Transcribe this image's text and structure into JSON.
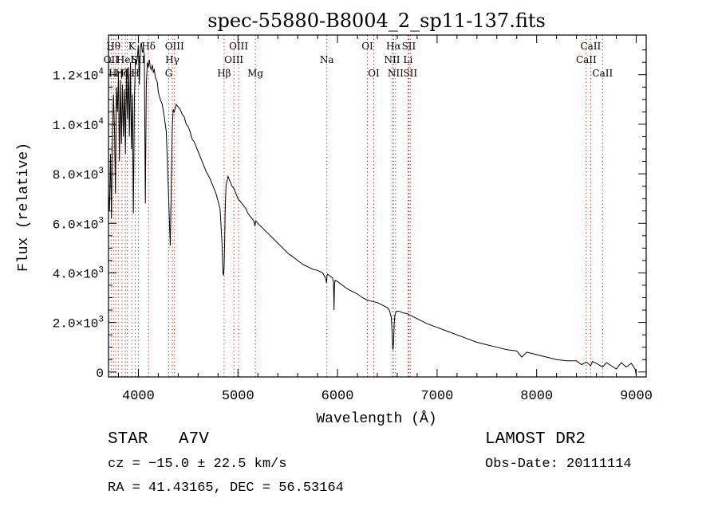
{
  "chart_data": {
    "type": "line",
    "title": "spec-55880-B8004_2_sp11-137.fits",
    "xlabel": "Wavelength (Å)",
    "ylabel": "Flux (relative)",
    "xlim": [
      3700,
      9100
    ],
    "ylim": [
      -200,
      13600
    ],
    "grid": false,
    "x_ticks": [
      4000,
      5000,
      6000,
      7000,
      8000,
      9000
    ],
    "x_tick_labels": [
      "4000",
      "5000",
      "6000",
      "7000",
      "8000",
      "9000"
    ],
    "y_ticks": [
      0,
      2000,
      4000,
      6000,
      8000,
      10000,
      12000
    ],
    "y_tick_labels": [
      {
        "m": "",
        "e": "",
        "plain": "0"
      },
      {
        "m": "2.0",
        "e": "3"
      },
      {
        "m": "4.0",
        "e": "3"
      },
      {
        "m": "6.0",
        "e": "3"
      },
      {
        "m": "8.0",
        "e": "3"
      },
      {
        "m": "1.0",
        "e": "4"
      },
      {
        "m": "1.2",
        "e": "4"
      }
    ],
    "series": [
      {
        "x": [
          3700,
          3710,
          3720,
          3730,
          3740,
          3750,
          3760,
          3770,
          3780,
          3790,
          3800,
          3810,
          3820,
          3830,
          3840,
          3850,
          3860,
          3870,
          3880,
          3890,
          3900,
          3910,
          3920,
          3930,
          3940,
          3950,
          3960,
          3970,
          3980,
          3990,
          4000,
          4010,
          4020,
          4030,
          4040,
          4050,
          4060,
          4070,
          4080,
          4090,
          4100,
          4110,
          4120,
          4130,
          4140,
          4150,
          4160,
          4170,
          4180,
          4190,
          4200,
          4220,
          4240,
          4260,
          4280,
          4300,
          4320,
          4330,
          4340,
          4350,
          4360,
          4380,
          4400,
          4420,
          4440,
          4460,
          4480,
          4500,
          4520,
          4540,
          4560,
          4580,
          4600,
          4620,
          4640,
          4660,
          4680,
          4700,
          4720,
          4740,
          4760,
          4780,
          4800,
          4820,
          4840,
          4850,
          4855,
          4861,
          4867,
          4872,
          4880,
          4900,
          4920,
          4940,
          4960,
          4980,
          5000,
          5020,
          5040,
          5060,
          5080,
          5100,
          5120,
          5140,
          5160,
          5170,
          5175,
          5180,
          5200,
          5250,
          5300,
          5350,
          5400,
          5450,
          5500,
          5550,
          5600,
          5650,
          5700,
          5750,
          5800,
          5850,
          5880,
          5890,
          5895,
          5900,
          5950,
          5960,
          5965,
          5970,
          5975,
          6000,
          6050,
          6100,
          6150,
          6200,
          6250,
          6300,
          6350,
          6400,
          6450,
          6500,
          6520,
          6540,
          6550,
          6556,
          6563,
          6570,
          6576,
          6590,
          6620,
          6650,
          6700,
          6750,
          6800,
          6900,
          7000,
          7100,
          7200,
          7300,
          7400,
          7500,
          7600,
          7700,
          7800,
          7850,
          7900,
          8000,
          8100,
          8200,
          8300,
          8400,
          8450,
          8500,
          8542,
          8560,
          8600,
          8662,
          8700,
          8750,
          8800,
          8850,
          8900,
          8950,
          8990,
          9000
        ],
        "values": [
          7200,
          6500,
          8800,
          6200,
          9600,
          11200,
          9800,
          7200,
          11500,
          10500,
          12000,
          8500,
          11800,
          9200,
          11600,
          9500,
          11400,
          8800,
          12200,
          10200,
          12300,
          9500,
          12500,
          9000,
          11200,
          6400,
          11000,
          12600,
          12400,
          12700,
          13200,
          11600,
          13100,
          13300,
          12900,
          13000,
          12800,
          6800,
          11600,
          12500,
          12300,
          12600,
          12300,
          12200,
          12400,
          12100,
          12200,
          11900,
          11800,
          11700,
          11300,
          11000,
          10800,
          10300,
          9700,
          7500,
          5100,
          7300,
          9800,
          10600,
          10500,
          10800,
          10700,
          10600,
          10400,
          10300,
          10000,
          9900,
          9700,
          9400,
          9300,
          9100,
          8900,
          8700,
          8500,
          8300,
          8100,
          7950,
          7800,
          7600,
          7400,
          7200,
          6900,
          6600,
          5200,
          4000,
          3900,
          4200,
          5400,
          6600,
          7500,
          7900,
          7700,
          7500,
          7400,
          7200,
          7000,
          6900,
          6800,
          6700,
          6600,
          6400,
          6300,
          6200,
          6100,
          5900,
          6000,
          6100,
          6000,
          5800,
          5600,
          5400,
          5200,
          5000,
          4800,
          4650,
          4500,
          4350,
          4250,
          4150,
          4100,
          4000,
          3800,
          3600,
          3900,
          3950,
          3800,
          3600,
          2500,
          3500,
          3700,
          3650,
          3500,
          3350,
          3250,
          3150,
          3000,
          2900,
          2850,
          2800,
          2700,
          2600,
          2500,
          2200,
          1500,
          900,
          1200,
          2000,
          2300,
          2450,
          2450,
          2400,
          2350,
          2250,
          2150,
          1950,
          1800,
          1650,
          1500,
          1350,
          1200,
          1100,
          1000,
          900,
          850,
          600,
          800,
          700,
          600,
          500,
          450,
          450,
          300,
          400,
          250,
          420,
          350,
          200,
          380,
          250,
          120,
          380,
          200,
          350,
          100,
          -150
        ]
      }
    ],
    "lines": [
      {
        "x": 3727,
        "labels": [
          "OII"
        ],
        "rows": [
          2
        ]
      },
      {
        "x": 3750,
        "labels": [
          "Hθ"
        ],
        "rows": [
          1
        ]
      },
      {
        "x": 3771,
        "labels": [
          "Hη"
        ],
        "rows": [
          3
        ]
      },
      {
        "x": 3798,
        "labels": [],
        "rows": []
      },
      {
        "x": 3835,
        "labels": [
          "Hζ"
        ],
        "rows": [
          3
        ]
      },
      {
        "x": 3869,
        "labels": [
          "HeI"
        ],
        "rows": [
          2
        ]
      },
      {
        "x": 3889,
        "labels": [
          "Hε"
        ],
        "rows": [
          3
        ]
      },
      {
        "x": 3934,
        "labels": [
          "K"
        ],
        "rows": [
          1
        ]
      },
      {
        "x": 3969,
        "labels": [
          "H"
        ],
        "rows": [
          3
        ]
      },
      {
        "x": 4000,
        "labels": [
          "SII"
        ],
        "rows": [
          2
        ]
      },
      {
        "x": 4102,
        "labels": [
          "Hδ"
        ],
        "rows": [
          1
        ]
      },
      {
        "x": 4305,
        "labels": [
          "G"
        ],
        "rows": [
          3
        ]
      },
      {
        "x": 4341,
        "labels": [
          "Hγ"
        ],
        "rows": [
          2
        ]
      },
      {
        "x": 4363,
        "labels": [
          "OIII"
        ],
        "rows": [
          1
        ]
      },
      {
        "x": 4861,
        "labels": [
          "Hβ"
        ],
        "rows": [
          3
        ]
      },
      {
        "x": 4959,
        "labels": [
          "OIII"
        ],
        "rows": [
          2
        ]
      },
      {
        "x": 5007,
        "labels": [
          "OIII"
        ],
        "rows": [
          1
        ]
      },
      {
        "x": 5175,
        "labels": [
          "Mg"
        ],
        "rows": [
          3
        ]
      },
      {
        "x": 5893,
        "labels": [
          "Na"
        ],
        "rows": [
          2
        ]
      },
      {
        "x": 6300,
        "labels": [
          "OI"
        ],
        "rows": [
          1
        ]
      },
      {
        "x": 6364,
        "labels": [
          "OI"
        ],
        "rows": [
          3
        ]
      },
      {
        "x": 6548,
        "labels": [
          "NII"
        ],
        "rows": [
          2
        ]
      },
      {
        "x": 6563,
        "labels": [
          "Hα"
        ],
        "rows": [
          1
        ]
      },
      {
        "x": 6583,
        "labels": [
          "NII"
        ],
        "rows": [
          3
        ]
      },
      {
        "x": 6708,
        "labels": [
          "Li"
        ],
        "rows": [
          2
        ]
      },
      {
        "x": 6716,
        "labels": [
          "SII"
        ],
        "rows": [
          1
        ]
      },
      {
        "x": 6731,
        "labels": [
          "SII"
        ],
        "rows": [
          3
        ]
      },
      {
        "x": 8498,
        "labels": [
          "CaII"
        ],
        "rows": [
          2
        ]
      },
      {
        "x": 8542,
        "labels": [
          "CaII"
        ],
        "rows": [
          1
        ]
      },
      {
        "x": 8662,
        "labels": [
          "CaII"
        ],
        "rows": [
          3
        ]
      }
    ],
    "line_color": "#d04040"
  },
  "info": {
    "object_class": "STAR",
    "subclass": "A7V",
    "survey": "LAMOST DR2",
    "cz": "cz = −15.0 ± 22.5 km/s",
    "obs_date": "Obs-Date: 20111114",
    "coords": "RA =  41.43165, DEC =  56.53164"
  }
}
